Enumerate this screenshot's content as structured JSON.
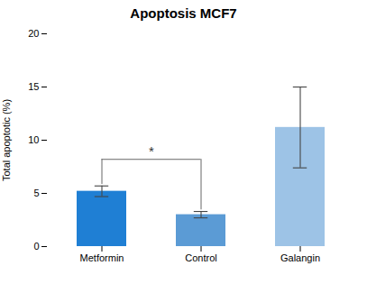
{
  "chart_data": {
    "type": "bar",
    "title": "Apoptosis MCF7",
    "ylabel": "Total apoptotic (%)",
    "categories": [
      "Metformin",
      "Control",
      "Galangin"
    ],
    "values": [
      5.2,
      3.0,
      11.2
    ],
    "errors": [
      0.5,
      0.3,
      3.8
    ],
    "colors": [
      "#1f7fd4",
      "#5b9bd5",
      "#9dc3e6"
    ],
    "ylim": [
      0,
      20
    ],
    "yticks": [
      0,
      5,
      10,
      15,
      20
    ],
    "grid": false,
    "annotations": [
      {
        "text": "*",
        "between": [
          "Metformin",
          "Control"
        ],
        "y": 8.5,
        "bracket_y": 8.2,
        "bracket_ends": [
          5.85,
          3.45
        ]
      }
    ]
  }
}
